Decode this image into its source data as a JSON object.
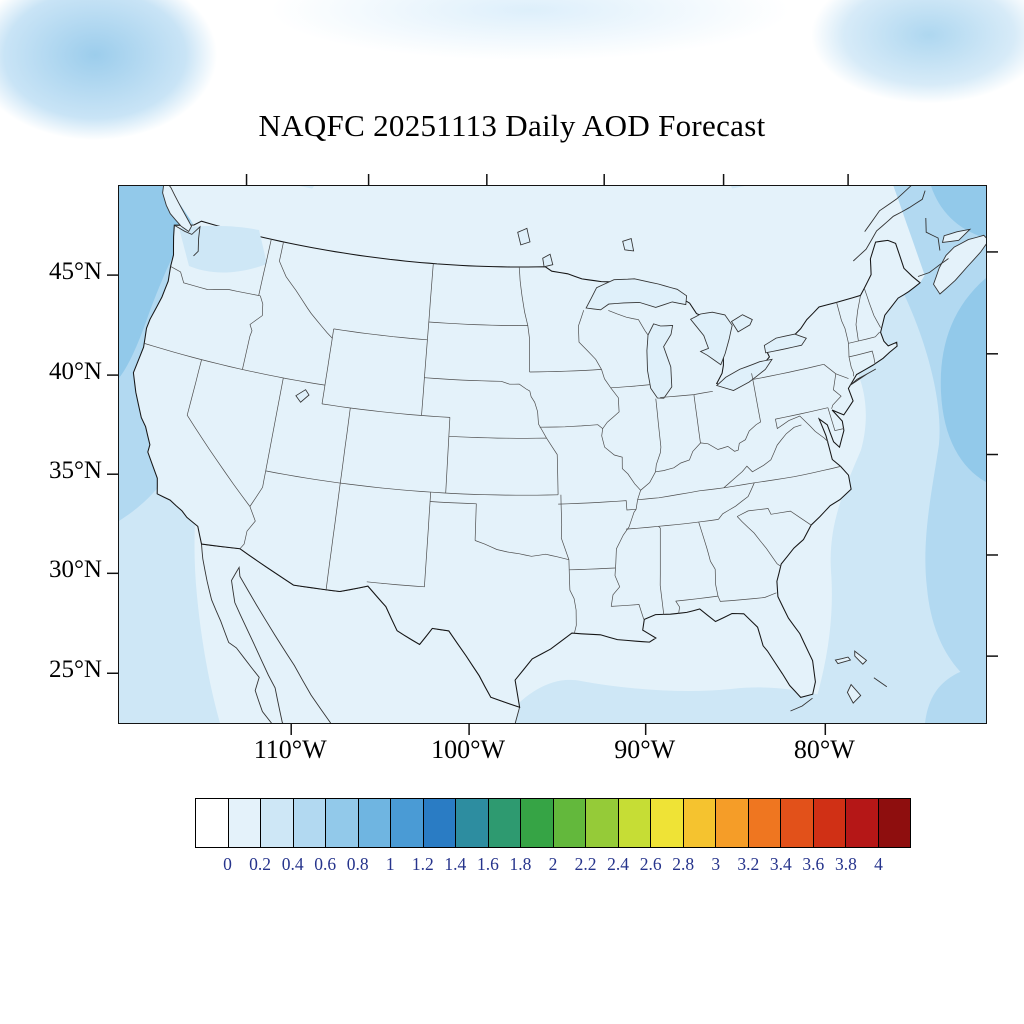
{
  "title": "NAQFC 20251113 Daily AOD Forecast",
  "map": {
    "lat_tick_labels": [
      "45°N",
      "40°N",
      "35°N",
      "30°N",
      "25°N"
    ],
    "lat_tick_values": [
      45,
      40,
      35,
      30,
      25
    ],
    "lon_tick_labels": [
      "110°W",
      "100°W",
      "90°W",
      "80°W"
    ],
    "lon_tick_values": [
      -110,
      -100,
      -90,
      -80
    ],
    "extra_tick_lons": [
      -120,
      -70
    ]
  },
  "colorbar": {
    "tick_labels": [
      "0",
      "0.2",
      "0.4",
      "0.6",
      "0.8",
      "1",
      "1.2",
      "1.4",
      "1.6",
      "1.8",
      "2",
      "2.2",
      "2.4",
      "2.6",
      "2.8",
      "3",
      "3.2",
      "3.4",
      "3.6",
      "3.8",
      "4"
    ],
    "colors": [
      "#FFFFFF",
      "#E4F2FA",
      "#CEE7F6",
      "#B2D9F1",
      "#92C9EA",
      "#6FB5E1",
      "#4A9BD5",
      "#2A7CC4",
      "#2D8DA0",
      "#2E9A70",
      "#36A445",
      "#63B83C",
      "#95CB38",
      "#C6DD35",
      "#EFE336",
      "#F5C32F",
      "#F59D28",
      "#EF7620",
      "#E2511A",
      "#D03015",
      "#B51717",
      "#8E0E0E"
    ],
    "label_color": "#26348c"
  },
  "field_summary": {
    "variable": "AOD",
    "regions": [
      {
        "region": "CONUS land",
        "aod_range": "0.0-0.2"
      },
      {
        "region": "Pacific offshore, northwest corner",
        "aod_range": "0.2-0.8"
      },
      {
        "region": "Atlantic offshore, east edge",
        "aod_range": "0.2-0.8"
      },
      {
        "region": "Gulf of Mexico and Caribbean",
        "aod_range": "0.0-0.6"
      }
    ]
  }
}
